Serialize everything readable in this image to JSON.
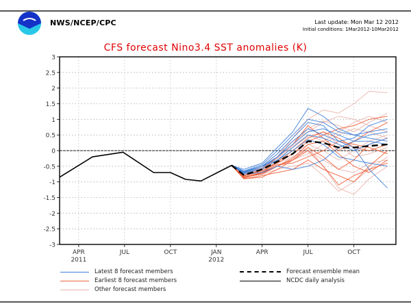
{
  "header": {
    "organization": "NWS/NCEP/CPC",
    "logo_icon": "noaa-logo-icon",
    "last_update": "Last update: Mon Mar 12 2012",
    "initial_conditions": "Initial conditions: 1Mar2012-10Mar2012"
  },
  "colors": {
    "title": "#e00000",
    "latest_members": "#3f7fd8",
    "earliest_members": "#f0603a",
    "other_members": "#e8b0a8",
    "ensemble_mean": "#000000",
    "observed": "#000000"
  },
  "chart_data": {
    "type": "line",
    "title": "CFS forecast Nino3.4 SST anomalies (K)",
    "xlabel": "",
    "ylabel": "",
    "ylim": [
      -3,
      3
    ],
    "yticks": [
      3,
      2.5,
      2,
      1.5,
      1,
      0.5,
      0,
      -0.5,
      -1,
      -1.5,
      -2,
      -2.5,
      -3
    ],
    "ytick_labels": [
      "3",
      "2.5",
      "2",
      "1.5",
      "1",
      "0.5",
      "0",
      "-0.5",
      "-1",
      "-1.5",
      "-2",
      "-2.5",
      "-3"
    ],
    "x_unit": "months since Jan 2011",
    "xlim": [
      1.75,
      23.75
    ],
    "xticks": [
      {
        "x": 3,
        "label": "APR",
        "year": "2011"
      },
      {
        "x": 6,
        "label": "JUL",
        "year": ""
      },
      {
        "x": 9,
        "label": "OCT",
        "year": ""
      },
      {
        "x": 12,
        "label": "JAN",
        "year": "2012"
      },
      {
        "x": 15,
        "label": "APR",
        "year": ""
      },
      {
        "x": 18,
        "label": "JUL",
        "year": ""
      },
      {
        "x": 21,
        "label": "OCT",
        "year": ""
      }
    ],
    "grid": true,
    "zero_line": true,
    "legend_position": "bottom",
    "legend": [
      {
        "label": "Latest 8 forecast members",
        "style": "latest"
      },
      {
        "label": "Earliest 8 forecast members",
        "style": "earliest"
      },
      {
        "label": "Other forecast members",
        "style": "other"
      },
      {
        "label": "Forecast ensemble mean",
        "style": "mean"
      },
      {
        "label": "NCDC daily analysis",
        "style": "observed"
      }
    ],
    "series": [
      {
        "name": "NCDC daily analysis",
        "style": "observed",
        "x": [
          1.75,
          3.9,
          5.9,
          7.9,
          9.0,
          10.0,
          11.0,
          13.0
        ],
        "y": [
          -0.85,
          -0.2,
          -0.05,
          -0.7,
          -0.7,
          -0.92,
          -0.97,
          -0.47
        ]
      },
      {
        "name": "Forecast ensemble mean",
        "style": "mean",
        "x": [
          13.0,
          13.8,
          15.0,
          16.0,
          17.0,
          18.0,
          19.0,
          20.0,
          21.0,
          22.0,
          23.2
        ],
        "y": [
          -0.47,
          -0.78,
          -0.6,
          -0.35,
          -0.1,
          0.3,
          0.25,
          0.1,
          0.1,
          0.15,
          0.2
        ]
      },
      {
        "name": "Latest member 1",
        "style": "latest",
        "x": [
          13.0,
          13.8,
          15,
          16,
          17,
          18,
          19,
          20,
          21,
          22,
          23.2
        ],
        "y": [
          -0.47,
          -0.6,
          -0.4,
          0.1,
          0.6,
          1.35,
          1.1,
          0.7,
          0.5,
          0.4,
          0.3
        ]
      },
      {
        "name": "Latest member 2",
        "style": "latest",
        "x": [
          13.0,
          13.8,
          15,
          16,
          17,
          18,
          19,
          20,
          21,
          22,
          23.2
        ],
        "y": [
          -0.47,
          -0.7,
          -0.5,
          -0.1,
          0.4,
          0.9,
          0.8,
          0.3,
          0.1,
          -0.6,
          -1.2
        ]
      },
      {
        "name": "Latest member 3",
        "style": "latest",
        "x": [
          13.0,
          13.8,
          15,
          16,
          17,
          18,
          19,
          20,
          21,
          22,
          23.2
        ],
        "y": [
          -0.47,
          -0.65,
          -0.45,
          0.0,
          0.5,
          1.0,
          0.9,
          0.6,
          0.5,
          0.6,
          0.7
        ]
      },
      {
        "name": "Latest member 4",
        "style": "latest",
        "x": [
          13.0,
          13.8,
          15,
          16,
          17,
          18,
          19,
          20,
          21,
          22,
          23.2
        ],
        "y": [
          -0.47,
          -0.75,
          -0.7,
          -0.5,
          -0.6,
          -0.5,
          -0.3,
          0.1,
          0.3,
          0.5,
          0.6
        ]
      },
      {
        "name": "Latest member 5",
        "style": "latest",
        "x": [
          13.0,
          13.8,
          15,
          16,
          17,
          18,
          19,
          20,
          21,
          22,
          23.2
        ],
        "y": [
          -0.47,
          -0.7,
          -0.55,
          -0.2,
          0.2,
          0.6,
          0.7,
          0.5,
          0.3,
          0.3,
          0.2
        ]
      },
      {
        "name": "Latest member 6",
        "style": "latest",
        "x": [
          13.0,
          13.8,
          15,
          16,
          17,
          18,
          19,
          20,
          21,
          22,
          23.2
        ],
        "y": [
          -0.47,
          -0.68,
          -0.5,
          -0.3,
          0.0,
          0.35,
          0.2,
          -0.2,
          -0.3,
          -0.4,
          -0.5
        ]
      },
      {
        "name": "Latest member 7",
        "style": "latest",
        "x": [
          13.0,
          13.8,
          15,
          16,
          17,
          18,
          19,
          20,
          21,
          22,
          23.2
        ],
        "y": [
          -0.47,
          -0.72,
          -0.6,
          -0.3,
          0.1,
          0.5,
          0.4,
          0.2,
          0.0,
          0.2,
          0.4
        ]
      },
      {
        "name": "Latest member 8",
        "style": "latest",
        "x": [
          13.0,
          13.8,
          15,
          16,
          17,
          18,
          19,
          20,
          21,
          22,
          23.2
        ],
        "y": [
          -0.47,
          -0.66,
          -0.5,
          -0.2,
          0.3,
          0.7,
          0.5,
          0.3,
          0.4,
          0.8,
          1.0
        ]
      },
      {
        "name": "Earliest member 1",
        "style": "earliest",
        "x": [
          13.0,
          13.8,
          15,
          16,
          17,
          18,
          19,
          20,
          21,
          22,
          23.2
        ],
        "y": [
          -0.47,
          -0.85,
          -0.75,
          -0.5,
          -0.3,
          0.0,
          -0.5,
          -1.1,
          -0.8,
          -0.6,
          -0.4
        ]
      },
      {
        "name": "Earliest member 2",
        "style": "earliest",
        "x": [
          13.0,
          13.8,
          15,
          16,
          17,
          18,
          19,
          20,
          21,
          22,
          23.2
        ],
        "y": [
          -0.47,
          -0.8,
          -0.65,
          -0.4,
          -0.1,
          0.3,
          0.5,
          0.7,
          0.8,
          1.0,
          1.1
        ]
      },
      {
        "name": "Earliest member 3",
        "style": "earliest",
        "x": [
          13.0,
          13.8,
          15,
          16,
          17,
          18,
          19,
          20,
          21,
          22,
          23.2
        ],
        "y": [
          -0.47,
          -0.9,
          -0.8,
          -0.7,
          -0.6,
          -0.3,
          -0.6,
          -0.8,
          -1.0,
          -0.5,
          0.0
        ]
      },
      {
        "name": "Earliest member 4",
        "style": "earliest",
        "x": [
          13.0,
          13.8,
          15,
          16,
          17,
          18,
          19,
          20,
          21,
          22,
          23.2
        ],
        "y": [
          -0.47,
          -0.82,
          -0.6,
          -0.2,
          0.2,
          0.8,
          0.4,
          0.0,
          0.3,
          0.6,
          0.9
        ]
      },
      {
        "name": "Earliest member 5",
        "style": "earliest",
        "x": [
          13.0,
          13.8,
          15,
          16,
          17,
          18,
          19,
          20,
          21,
          22,
          23.2
        ],
        "y": [
          -0.47,
          -0.88,
          -0.7,
          -0.45,
          -0.4,
          -0.2,
          0.0,
          0.3,
          0.2,
          0.1,
          -0.1
        ]
      },
      {
        "name": "Earliest member 6",
        "style": "earliest",
        "x": [
          13.0,
          13.8,
          15,
          16,
          17,
          18,
          19,
          20,
          21,
          22,
          23.2
        ],
        "y": [
          -0.47,
          -0.85,
          -0.7,
          -0.35,
          0.0,
          0.4,
          0.6,
          0.4,
          0.1,
          0.0,
          0.2
        ]
      },
      {
        "name": "Earliest member 7",
        "style": "earliest",
        "x": [
          13.0,
          13.8,
          15,
          16,
          17,
          18,
          19,
          20,
          21,
          22,
          23.2
        ],
        "y": [
          -0.47,
          -0.9,
          -0.85,
          -0.6,
          -0.3,
          0.1,
          -0.2,
          -0.6,
          -0.3,
          0.2,
          0.4
        ]
      },
      {
        "name": "Earliest member 8",
        "style": "earliest",
        "x": [
          13.0,
          13.8,
          15,
          16,
          17,
          18,
          19,
          20,
          21,
          22,
          23.2
        ],
        "y": [
          -0.47,
          -0.87,
          -0.72,
          -0.5,
          -0.25,
          0.2,
          0.3,
          -0.1,
          -0.5,
          -0.7,
          -0.3
        ]
      },
      {
        "name": "Other member 1",
        "style": "other",
        "x": [
          13.0,
          13.8,
          15,
          16,
          17,
          18,
          19,
          20,
          21,
          22,
          23.2
        ],
        "y": [
          -0.47,
          -0.75,
          -0.6,
          -0.2,
          0.4,
          1.0,
          1.3,
          1.2,
          1.5,
          1.9,
          1.85
        ]
      },
      {
        "name": "Other member 2",
        "style": "other",
        "x": [
          13.0,
          13.8,
          15,
          16,
          17,
          18,
          19,
          20,
          21,
          22,
          23.2
        ],
        "y": [
          -0.47,
          -0.8,
          -0.7,
          -0.5,
          -0.2,
          0.1,
          -0.5,
          -1.2,
          -1.4,
          -0.9,
          -0.5
        ]
      },
      {
        "name": "Other member 3",
        "style": "other",
        "x": [
          13.0,
          13.8,
          15,
          16,
          17,
          18,
          19,
          20,
          21,
          22,
          23.2
        ],
        "y": [
          -0.47,
          -0.7,
          -0.5,
          -0.1,
          0.3,
          0.6,
          0.9,
          1.1,
          1.0,
          0.8,
          0.6
        ]
      },
      {
        "name": "Other member 4",
        "style": "other",
        "x": [
          13.0,
          13.8,
          15,
          16,
          17,
          18,
          19,
          20,
          21,
          22,
          23.2
        ],
        "y": [
          -0.47,
          -0.85,
          -0.75,
          -0.6,
          -0.5,
          -0.4,
          -0.8,
          -1.3,
          -1.0,
          -0.6,
          -0.2
        ]
      },
      {
        "name": "Other member 5",
        "style": "other",
        "x": [
          13.0,
          13.8,
          15,
          16,
          17,
          18,
          19,
          20,
          21,
          22,
          23.2
        ],
        "y": [
          -0.47,
          -0.72,
          -0.55,
          -0.25,
          0.15,
          0.5,
          0.3,
          0.6,
          0.9,
          1.1,
          0.9
        ]
      },
      {
        "name": "Other member 6",
        "style": "other",
        "x": [
          13.0,
          13.8,
          15,
          16,
          17,
          18,
          19,
          20,
          21,
          22,
          23.2
        ],
        "y": [
          -0.47,
          -0.78,
          -0.62,
          -0.35,
          -0.1,
          0.2,
          0.0,
          -0.3,
          0.0,
          0.3,
          0.5
        ]
      },
      {
        "name": "Other member 7",
        "style": "other",
        "x": [
          13.0,
          13.8,
          15,
          16,
          17,
          18,
          19,
          20,
          21,
          22,
          23.2
        ],
        "y": [
          -0.47,
          -0.83,
          -0.68,
          -0.45,
          -0.3,
          -0.1,
          0.2,
          0.5,
          0.7,
          0.6,
          0.4
        ]
      },
      {
        "name": "Other member 8",
        "style": "other",
        "x": [
          13.0,
          13.8,
          15,
          16,
          17,
          18,
          19,
          20,
          21,
          22,
          23.2
        ],
        "y": [
          -0.47,
          -0.76,
          -0.58,
          -0.3,
          0.1,
          0.45,
          0.6,
          0.2,
          -0.2,
          -0.1,
          0.1
        ]
      },
      {
        "name": "Other member 9",
        "style": "other",
        "x": [
          13.0,
          13.8,
          15,
          16,
          17,
          18,
          19,
          20,
          21,
          22,
          23.2
        ],
        "y": [
          -0.47,
          -0.8,
          -0.66,
          -0.4,
          -0.2,
          0.0,
          -0.3,
          -0.6,
          -0.7,
          -0.4,
          -0.3
        ]
      },
      {
        "name": "Other member 10",
        "style": "other",
        "x": [
          13.0,
          13.8,
          15,
          16,
          17,
          18,
          19,
          20,
          21,
          22,
          23.2
        ],
        "y": [
          -0.47,
          -0.74,
          -0.56,
          -0.22,
          0.2,
          0.7,
          0.95,
          0.8,
          0.6,
          0.9,
          1.2
        ]
      }
    ]
  }
}
